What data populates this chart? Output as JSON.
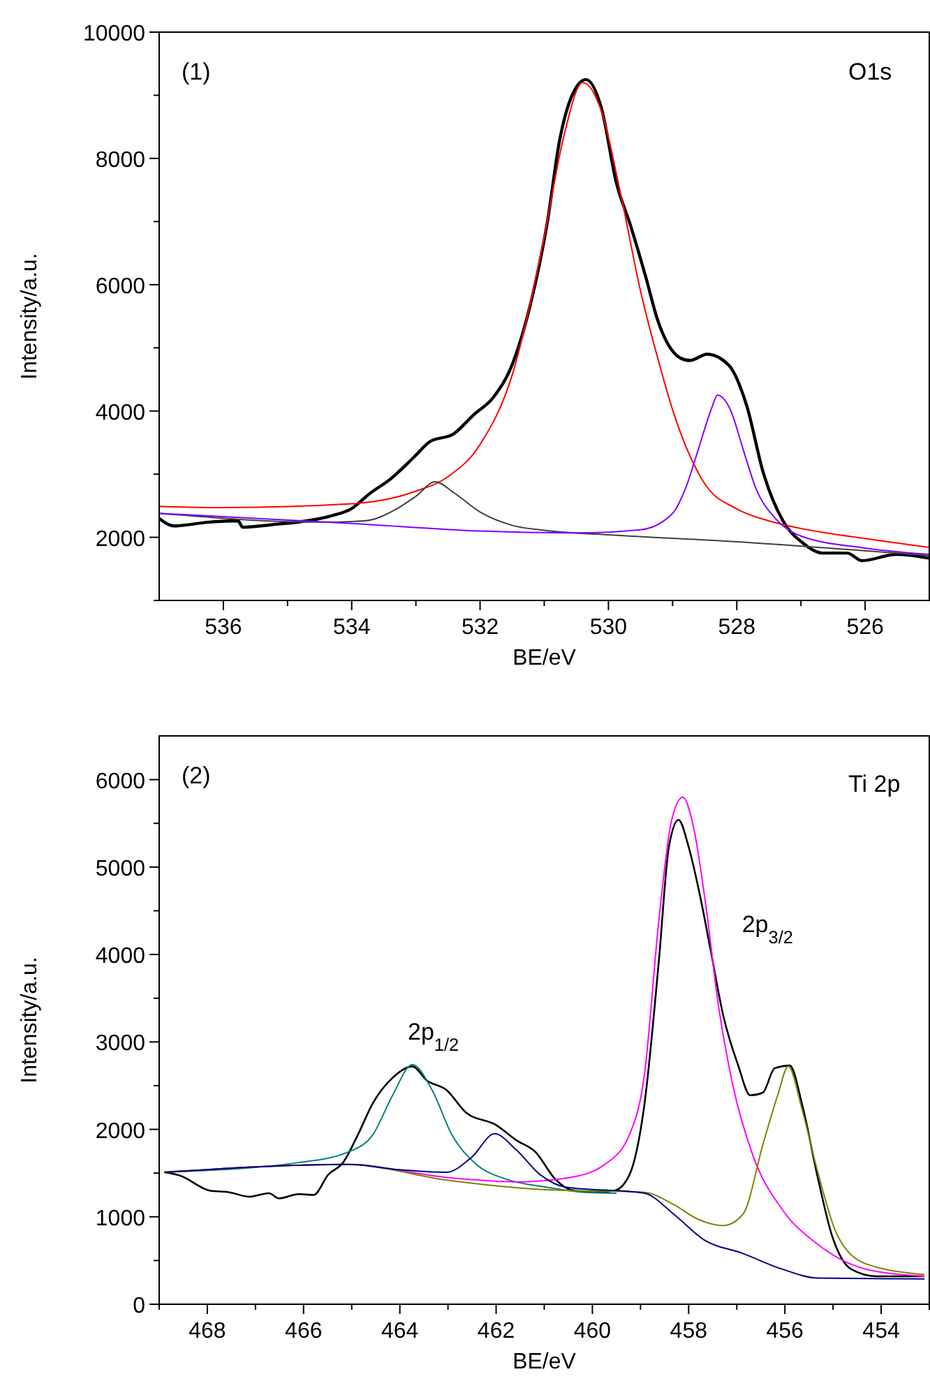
{
  "chart_data": [
    {
      "type": "line",
      "xlabel": "BE/eV",
      "ylabel": "Intensity/a.u.",
      "xlim": [
        537,
        525
      ],
      "ylim": [
        1000,
        10000
      ],
      "xticks": [
        536,
        {
          "value": 535,
          "label": null
        },
        534,
        {
          "value": 533,
          "label": null
        },
        532,
        {
          "value": 531,
          "label": null
        },
        530,
        {
          "value": 529,
          "label": null
        },
        528,
        {
          "value": 527,
          "label": null
        },
        526
      ],
      "yticks": [
        {
          "value": 1000,
          "label": null
        },
        2000,
        {
          "value": 3000,
          "label": null
        },
        4000,
        {
          "value": 5000,
          "label": null
        },
        6000,
        {
          "value": 7000,
          "label": null
        },
        8000,
        {
          "value": 9000,
          "label": null
        },
        10000
      ],
      "grid": false,
      "marker": "none",
      "line_style": "solid",
      "annotations": [
        "(1)",
        "O1s"
      ],
      "series": [
        {
          "color": "#000000",
          "x": [
            537,
            536.77,
            536.23,
            535.77,
            535.7,
            535.24,
            534.7,
            534.32,
            534.01,
            533.71,
            533.4,
            533.02,
            532.79,
            532.41,
            532.1,
            531.79,
            531.49,
            531.26,
            530.95,
            530.76,
            530.57,
            530.35,
            530.11,
            529.88,
            529.65,
            529.42,
            529.23,
            528.88,
            528.73,
            528.46,
            528.12,
            527.85,
            527.58,
            527.28,
            526.97,
            526.66,
            526.28,
            526.05,
            525.51,
            525
          ],
          "values": [
            2300,
            2180,
            2240,
            2260,
            2160,
            2200,
            2260,
            2340,
            2450,
            2700,
            2920,
            3280,
            3510,
            3640,
            3940,
            4220,
            4760,
            5510,
            7000,
            8290,
            8990,
            9250,
            8800,
            7630,
            6920,
            6130,
            5430,
            4840,
            4800,
            4900,
            4720,
            4100,
            3000,
            2260,
            1910,
            1750,
            1750,
            1630,
            1730,
            1670
          ]
        },
        {
          "color": "#ff0000",
          "x": [
            537,
            536,
            534,
            533,
            532.5,
            532,
            531.5,
            531,
            530.7,
            530.4,
            530.1,
            529.8,
            529.5,
            529.2,
            529,
            528.5,
            528,
            527.5,
            527,
            526,
            525
          ],
          "values": [
            2490,
            2470,
            2530,
            2730,
            2960,
            3470,
            4570,
            6760,
            8330,
            9200,
            8720,
            7390,
            5900,
            4720,
            4020,
            2850,
            2450,
            2260,
            2140,
            1980,
            1840
          ]
        },
        {
          "color": "#404040",
          "x": [
            537,
            534.5,
            533.8,
            533.3,
            533,
            532.7,
            532.4,
            532,
            531.5,
            531,
            530,
            528,
            525
          ],
          "values": [
            2380,
            2240,
            2260,
            2450,
            2650,
            2880,
            2700,
            2400,
            2190,
            2110,
            2040,
            1930,
            1710
          ]
        },
        {
          "color": "#8000ff",
          "x": [
            537,
            534,
            532,
            530.5,
            529.5,
            529,
            528.8,
            528.6,
            528.4,
            528.3,
            528.1,
            527.9,
            527.7,
            527.4,
            527,
            526,
            525
          ],
          "values": [
            2380,
            2220,
            2100,
            2070,
            2120,
            2380,
            2770,
            3390,
            4020,
            4250,
            4020,
            3390,
            2770,
            2300,
            2020,
            1830,
            1730
          ]
        }
      ]
    },
    {
      "type": "line",
      "xlabel": "BE/eV",
      "ylabel": "Intensity/a.u.",
      "xlim": [
        469,
        453
      ],
      "ylim": [
        0,
        6500
      ],
      "xticks": [
        {
          "value": 469,
          "label": null
        },
        468,
        {
          "value": 467,
          "label": null
        },
        466,
        {
          "value": 465,
          "label": null
        },
        464,
        {
          "value": 463,
          "label": null
        },
        462,
        {
          "value": 461,
          "label": null
        },
        460,
        {
          "value": 459,
          "label": null
        },
        458,
        {
          "value": 457,
          "label": null
        },
        456,
        {
          "value": 455,
          "label": null
        },
        454,
        {
          "value": 453,
          "label": null
        }
      ],
      "yticks": [
        0,
        {
          "value": 500,
          "label": null
        },
        1000,
        {
          "value": 1500,
          "label": null
        },
        2000,
        {
          "value": 2500,
          "label": null
        },
        3000,
        {
          "value": 3500,
          "label": null
        },
        4000,
        {
          "value": 4500,
          "label": null
        },
        5000,
        {
          "value": 5500,
          "label": null
        },
        6000
      ],
      "grid": false,
      "marker": "none",
      "line_style": "solid",
      "annotations": [
        "(2)",
        "Ti 2p",
        "2p$_{1/2}$",
        "2p$_{3/2}$"
      ],
      "series": [
        {
          "color": "#000000",
          "x": [
            468.89,
            468.56,
            467.95,
            467.54,
            467.13,
            466.72,
            466.51,
            466.1,
            465.79,
            465.49,
            465.18,
            464.87,
            464.56,
            464.15,
            463.74,
            463.44,
            463.03,
            462.62,
            462,
            461.59,
            461.18,
            460.77,
            460.46,
            459.95,
            459.54,
            459.23,
            458.92,
            458.62,
            458.41,
            458.21,
            458,
            457.74,
            457.54,
            457.28,
            456.97,
            456.72,
            456.46,
            456.21,
            455.9,
            455.64,
            455.33,
            455.03,
            454.62,
            454.1,
            453.1
          ],
          "values": [
            1510,
            1470,
            1300,
            1280,
            1230,
            1270,
            1210,
            1260,
            1250,
            1480,
            1620,
            1940,
            2300,
            2590,
            2720,
            2560,
            2450,
            2190,
            2050,
            1880,
            1740,
            1430,
            1310,
            1280,
            1300,
            1480,
            2280,
            3920,
            5230,
            5540,
            5230,
            4610,
            4040,
            3300,
            2730,
            2390,
            2420,
            2700,
            2730,
            2280,
            1480,
            800,
            400,
            320,
            320
          ]
        },
        {
          "color": "#008080",
          "x": [
            468.89,
            466.1,
            465.08,
            464.56,
            464.15,
            463.74,
            463.33,
            462.92,
            462.41,
            461.79,
            460.97,
            460.15,
            459.5
          ],
          "values": [
            1510,
            1620,
            1740,
            1940,
            2390,
            2740,
            2450,
            1940,
            1600,
            1430,
            1340,
            1280,
            1270
          ]
        },
        {
          "color": "#ff00ff",
          "x": [
            468.89,
            465.08,
            463.03,
            461.49,
            460.46,
            459.74,
            459.23,
            458.92,
            458.62,
            458.36,
            458.12,
            457.9,
            457.64,
            457.38,
            457.08,
            456.67,
            456.05,
            455.33,
            454.31,
            453.1
          ],
          "values": [
            1510,
            1600,
            1450,
            1400,
            1450,
            1600,
            1940,
            2620,
            4380,
            5520,
            5800,
            5460,
            4550,
            3410,
            2500,
            1710,
            1080,
            690,
            400,
            320
          ]
        },
        {
          "color": "#808000",
          "x": [
            468.89,
            465.08,
            463.03,
            460.97,
            458.92,
            458.31,
            457.8,
            457.28,
            456.87,
            456.46,
            456.15,
            455.93,
            455.64,
            455.33,
            454.92,
            454.31,
            453.1
          ],
          "values": [
            1510,
            1600,
            1420,
            1310,
            1280,
            1140,
            970,
            900,
            1030,
            1820,
            2390,
            2720,
            2220,
            1540,
            800,
            460,
            340
          ]
        },
        {
          "color": "#000080",
          "x": [
            468.89,
            465.08,
            464.05,
            463.03,
            462.51,
            462.03,
            461.59,
            461.08,
            460.56,
            458.92,
            458.31,
            457.69,
            456.87,
            456.05,
            455.33,
            453.1
          ],
          "values": [
            1510,
            1600,
            1540,
            1510,
            1680,
            1950,
            1770,
            1480,
            1340,
            1270,
            1030,
            740,
            580,
            400,
            300,
            290
          ]
        }
      ]
    }
  ]
}
